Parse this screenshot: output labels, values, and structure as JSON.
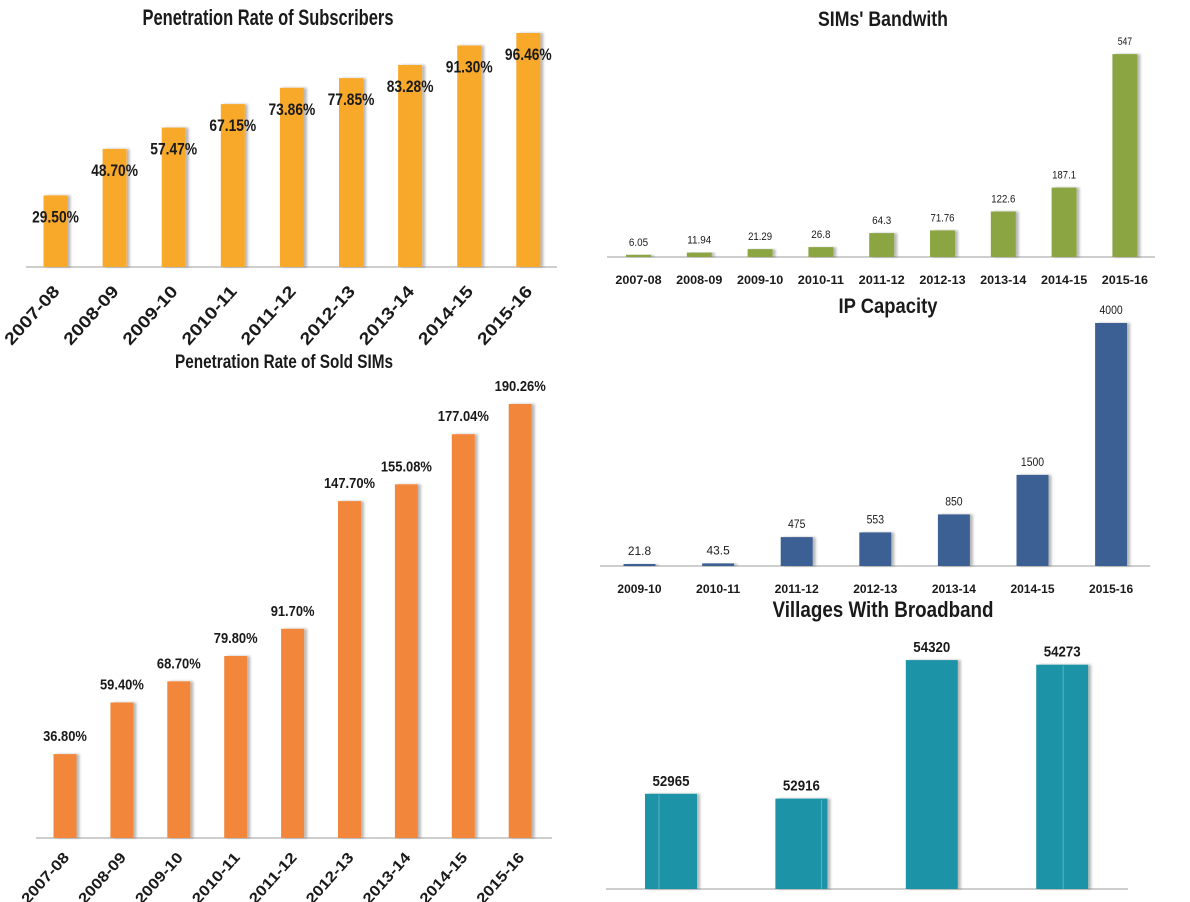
{
  "chart_data": [
    {
      "type": "bar",
      "title": "Penetration Rate of Subscribers",
      "categories": [
        "2007-08",
        "2008-09",
        "2009-10",
        "2010-11",
        "2011-12",
        "2012-13",
        "2013-14",
        "2014-15",
        "2015-16"
      ],
      "values": [
        29.5,
        48.7,
        57.47,
        67.15,
        73.86,
        77.85,
        83.28,
        91.3,
        96.46
      ],
      "labels": [
        "29.50%",
        "48.70%",
        "57.47%",
        "67.15%",
        "73.86%",
        "77.85%",
        "83.28%",
        "91.30%",
        "96.46%"
      ],
      "xlabel": "",
      "ylabel": "",
      "ylim": [
        0,
        100
      ],
      "grid": false,
      "legend": "none",
      "color": "#F9A92B"
    },
    {
      "type": "bar",
      "title": "Penetration Rate of Sold SIMs",
      "categories": [
        "2007-08",
        "2008-09",
        "2009-10",
        "2010-11",
        "2011-12",
        "2012-13",
        "2013-14",
        "2014-15",
        "2015-16"
      ],
      "values": [
        36.8,
        59.4,
        68.7,
        79.8,
        91.7,
        147.7,
        155.08,
        177.04,
        190.26
      ],
      "labels": [
        "36.80%",
        "59.40%",
        "68.70%",
        "79.80%",
        "91.70%",
        "147.70%",
        "155.08%",
        "177.04%",
        "190.26%"
      ],
      "xlabel": "",
      "ylabel": "",
      "ylim": [
        0,
        200
      ],
      "grid": false,
      "legend": "none",
      "color": "#F2873A"
    },
    {
      "type": "bar",
      "title": "SIMs' Bandwith",
      "categories": [
        "2007-08",
        "2008-09",
        "2009-10",
        "2010-11",
        "2011-12",
        "2012-13",
        "2013-14",
        "2014-15",
        "2015-16"
      ],
      "values": [
        6.05,
        11.94,
        21.29,
        26.8,
        64.3,
        71.76,
        122.6,
        187.1,
        547
      ],
      "labels": [
        "6.05",
        "11.94",
        "21.29",
        "26.8",
        "64.3",
        "71.76",
        "122.6",
        "187.1",
        "547"
      ],
      "xlabel": "",
      "ylabel": "",
      "ylim": [
        0,
        600
      ],
      "grid": false,
      "legend": "none",
      "color": "#8BA543"
    },
    {
      "type": "bar",
      "title": "IP Capacity",
      "categories": [
        "2009-10",
        "2010-11",
        "2011-12",
        "2012-13",
        "2013-14",
        "2014-15",
        "2015-16"
      ],
      "values": [
        21.8,
        43.5,
        475,
        553,
        850,
        1500,
        4000
      ],
      "labels": [
        "21.8",
        "43.5",
        "475",
        "553",
        "850",
        "1500",
        "4000"
      ],
      "xlabel": "",
      "ylabel": "",
      "ylim": [
        0,
        4000
      ],
      "grid": false,
      "legend": "none",
      "color": "#3C6194"
    },
    {
      "type": "bar",
      "title": "Villages With Broadband",
      "values": [
        52965,
        52916,
        54320,
        54273
      ],
      "labels": [
        "52965",
        "52916",
        "54320",
        "54273"
      ],
      "xlabel": "",
      "ylabel": "",
      "ylim": [
        52000,
        54500
      ],
      "grid": false,
      "legend": "none",
      "color": "#1B93A7"
    }
  ]
}
